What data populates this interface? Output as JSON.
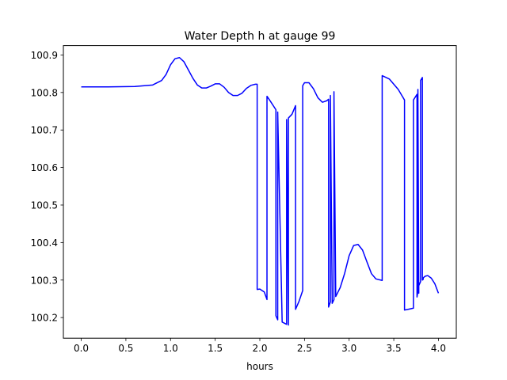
{
  "chart_data": {
    "type": "line",
    "title": "Water Depth h at gauge 99",
    "xlabel": "hours",
    "ylabel": "",
    "xlim": [
      -0.2,
      4.2
    ],
    "ylim": [
      100.145,
      100.925
    ],
    "xticks": [
      0.0,
      0.5,
      1.0,
      1.5,
      2.0,
      2.5,
      3.0,
      3.5,
      4.0
    ],
    "xtick_labels": [
      "0.0",
      "0.5",
      "1.0",
      "1.5",
      "2.0",
      "2.5",
      "3.0",
      "3.5",
      "4.0"
    ],
    "yticks": [
      100.2,
      100.3,
      100.4,
      100.5,
      100.6,
      100.7,
      100.8,
      100.9
    ],
    "ytick_labels": [
      "100.2",
      "100.3",
      "100.4",
      "100.5",
      "100.6",
      "100.7",
      "100.8",
      "100.9"
    ],
    "grid": false,
    "series": [
      {
        "color": "#0000ff",
        "x": [
          0.0,
          0.3,
          0.6,
          0.8,
          0.9,
          0.95,
          1.0,
          1.05,
          1.1,
          1.15,
          1.2,
          1.25,
          1.3,
          1.35,
          1.4,
          1.45,
          1.5,
          1.55,
          1.6,
          1.65,
          1.7,
          1.75,
          1.8,
          1.85,
          1.9,
          1.95,
          1.97,
          1.97,
          2.0,
          2.05,
          2.08,
          2.08,
          2.12,
          2.18,
          2.18,
          2.2,
          2.2,
          2.25,
          2.3,
          2.3,
          2.32,
          2.32,
          2.36,
          2.4,
          2.4,
          2.44,
          2.48,
          2.48,
          2.5,
          2.55,
          2.6,
          2.65,
          2.7,
          2.75,
          2.77,
          2.77,
          2.79,
          2.79,
          2.81,
          2.81,
          2.83,
          2.83,
          2.85,
          2.9,
          2.95,
          3.0,
          3.05,
          3.1,
          3.15,
          3.2,
          3.25,
          3.3,
          3.37,
          3.37,
          3.45,
          3.55,
          3.62,
          3.62,
          3.66,
          3.7,
          3.72,
          3.72,
          3.76,
          3.76,
          3.77,
          3.77,
          3.78,
          3.78,
          3.8,
          3.8,
          3.82,
          3.82,
          3.83,
          3.83,
          3.85,
          3.88,
          3.92,
          3.96,
          4.0
        ],
        "y": [
          100.815,
          100.815,
          100.816,
          100.82,
          100.832,
          100.848,
          100.874,
          100.89,
          100.893,
          100.882,
          100.86,
          100.838,
          100.82,
          100.812,
          100.812,
          100.817,
          100.823,
          100.823,
          100.814,
          100.8,
          100.792,
          100.792,
          100.798,
          100.811,
          100.819,
          100.822,
          100.822,
          100.275,
          100.276,
          100.268,
          100.248,
          100.79,
          100.776,
          100.754,
          100.205,
          100.194,
          100.748,
          100.188,
          100.182,
          100.728,
          100.18,
          100.732,
          100.742,
          100.765,
          100.222,
          100.244,
          100.272,
          100.818,
          100.826,
          100.826,
          100.81,
          100.786,
          100.774,
          100.778,
          100.782,
          100.228,
          100.242,
          100.792,
          100.256,
          100.238,
          100.248,
          100.802,
          100.256,
          100.28,
          100.318,
          100.365,
          100.392,
          100.395,
          100.38,
          100.348,
          100.317,
          100.303,
          100.299,
          100.845,
          100.836,
          100.808,
          100.78,
          100.22,
          100.222,
          100.224,
          100.225,
          100.78,
          100.795,
          100.255,
          100.27,
          100.808,
          100.265,
          100.285,
          100.296,
          100.832,
          100.84,
          100.3,
          100.302,
          100.306,
          100.31,
          100.312,
          100.305,
          100.29,
          100.265
        ]
      }
    ]
  }
}
